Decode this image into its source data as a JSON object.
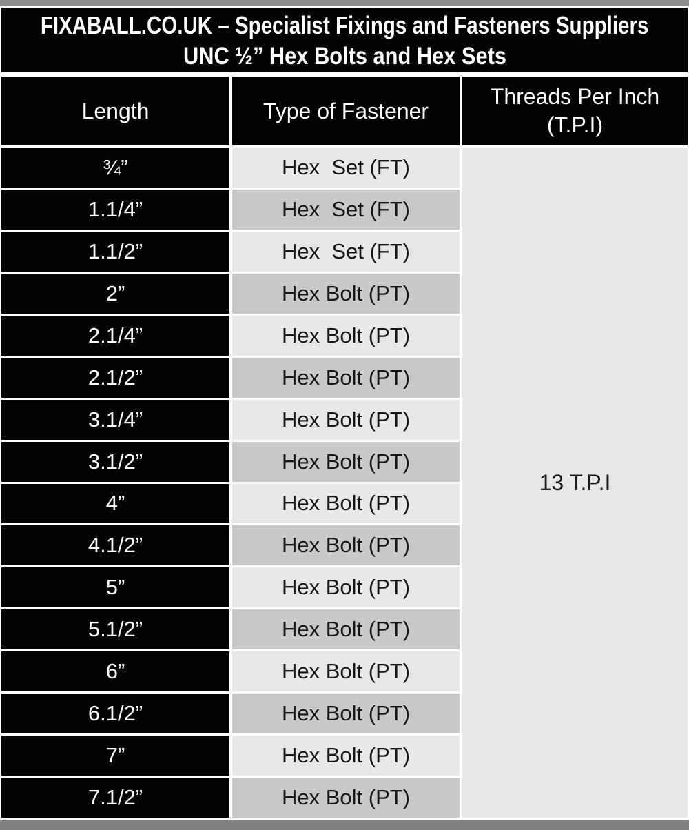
{
  "title": {
    "line1": "FIXABALL.CO.UK – Specialist Fixings and Fasteners Suppliers",
    "line2": "UNC ½” Hex Bolts and Hex Sets"
  },
  "chart_data": {
    "type": "table",
    "title": "FIXABALL.CO.UK – Specialist Fixings and Fasteners Suppliers",
    "subtitle": "UNC ½” Hex Bolts and Hex Sets",
    "columns": [
      "Length",
      "Type of Fastener",
      "Threads Per Inch (T.P.I)"
    ],
    "rows": [
      {
        "length": "¾”",
        "type": "Hex  Set (FT)"
      },
      {
        "length": "1.1/4”",
        "type": "Hex  Set (FT)"
      },
      {
        "length": "1.1/2”",
        "type": "Hex  Set (FT)"
      },
      {
        "length": "2”",
        "type": "Hex Bolt (PT)"
      },
      {
        "length": "2.1/4”",
        "type": "Hex Bolt (PT)"
      },
      {
        "length": "2.1/2”",
        "type": "Hex Bolt (PT)"
      },
      {
        "length": "3.1/4”",
        "type": "Hex Bolt (PT)"
      },
      {
        "length": "3.1/2”",
        "type": "Hex Bolt (PT)"
      },
      {
        "length": "4”",
        "type": "Hex Bolt (PT)"
      },
      {
        "length": "4.1/2”",
        "type": "Hex Bolt (PT)"
      },
      {
        "length": "5”",
        "type": "Hex Bolt (PT)"
      },
      {
        "length": "5.1/2”",
        "type": "Hex Bolt (PT)"
      },
      {
        "length": "6”",
        "type": "Hex Bolt (PT)"
      },
      {
        "length": "6.1/2”",
        "type": "Hex Bolt (PT)"
      },
      {
        "length": "7”",
        "type": "Hex Bolt (PT)"
      },
      {
        "length": "7.1/2”",
        "type": "Hex Bolt (PT)"
      }
    ],
    "merged_tpi_value": "13 T.P.I"
  },
  "colors": {
    "header_black": "#030303",
    "row_light": "#e8e8e8",
    "row_dark": "#c9c9c9",
    "merged_cell": "#e8e8e8",
    "top_bar": "#8c8c8c",
    "bottom_bar": "#818181",
    "text_white": "#ffffff",
    "text_black": "#161616"
  }
}
